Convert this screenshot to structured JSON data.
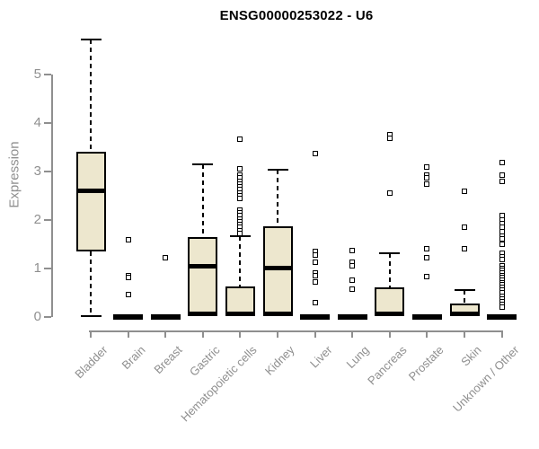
{
  "colors": {
    "axis": "#8f8f8f",
    "ink": "#000000",
    "box_fill": "#ede7ce",
    "background": "#ffffff"
  },
  "chart_data": {
    "type": "boxplot",
    "title": "ENSG00000253022 - U6",
    "xlabel": "",
    "ylabel": "Expression",
    "ylim": [
      0,
      5.8
    ],
    "yticks": [
      0,
      1,
      2,
      3,
      4,
      5
    ],
    "grid": false,
    "legend": "none",
    "categories": [
      "Bladder",
      "Brain",
      "Breast",
      "Gastric",
      "Hematopoietic cells",
      "Kidney",
      "Liver",
      "Lung",
      "Pancreas",
      "Prostate",
      "Skin",
      "Unknown / Other"
    ],
    "series": [
      {
        "name": "Bladder",
        "whisker_low": 0,
        "q1": 1.35,
        "median": 2.6,
        "q3": 3.4,
        "whisker_high": 5.72,
        "outliers": []
      },
      {
        "name": "Brain",
        "whisker_low": 0,
        "q1": 0,
        "median": 0,
        "q3": 0,
        "whisker_high": 0,
        "outliers": [
          1.58,
          0.84,
          0.81,
          0.45
        ]
      },
      {
        "name": "Breast",
        "whisker_low": 0,
        "q1": 0,
        "median": 0,
        "q3": 0,
        "whisker_high": 0,
        "outliers": [
          1.22
        ]
      },
      {
        "name": "Gastric",
        "whisker_low": 0,
        "q1": 0,
        "median": 1.03,
        "q3": 1.65,
        "whisker_high": 3.15,
        "outliers": []
      },
      {
        "name": "Hematopoietic cells",
        "whisker_low": 0,
        "q1": 0,
        "median": 0,
        "q3": 0.62,
        "whisker_high": 1.66,
        "outliers": [
          3.67,
          3.05,
          2.92,
          2.86,
          2.8,
          2.74,
          2.68,
          2.62,
          2.56,
          2.5,
          2.44,
          2.2,
          2.14,
          2.08,
          2.02,
          1.96,
          1.9,
          1.84,
          1.78,
          1.72
        ]
      },
      {
        "name": "Kidney",
        "whisker_low": 0,
        "q1": 0,
        "median": 1.0,
        "q3": 1.87,
        "whisker_high": 3.03,
        "outliers": []
      },
      {
        "name": "Liver",
        "whisker_low": 0,
        "q1": 0,
        "median": 0,
        "q3": 0,
        "whisker_high": 0,
        "outliers": [
          3.36,
          1.34,
          1.27,
          1.12,
          0.9,
          0.85,
          0.71,
          0.29
        ]
      },
      {
        "name": "Lung",
        "whisker_low": 0,
        "q1": 0,
        "median": 0,
        "q3": 0,
        "whisker_high": 0,
        "outliers": [
          1.36,
          1.12,
          1.04,
          0.75,
          0.57
        ]
      },
      {
        "name": "Pancreas",
        "whisker_low": 0,
        "q1": 0,
        "median": 0,
        "q3": 0.6,
        "whisker_high": 1.31,
        "outliers": [
          3.75,
          3.68,
          2.56
        ]
      },
      {
        "name": "Prostate",
        "whisker_low": 0,
        "q1": 0,
        "median": 0,
        "q3": 0,
        "whisker_high": 0,
        "outliers": [
          3.08,
          2.93,
          2.86,
          2.74,
          1.41,
          1.22,
          0.82
        ]
      },
      {
        "name": "Skin",
        "whisker_low": 0,
        "q1": 0,
        "median": 0,
        "q3": 0.26,
        "whisker_high": 0.54,
        "outliers": [
          2.58,
          1.84,
          1.4
        ]
      },
      {
        "name": "Unknown / Other",
        "whisker_low": 0,
        "q1": 0,
        "median": 0,
        "q3": 0,
        "whisker_high": 0,
        "outliers": [
          3.18,
          2.92,
          2.8,
          2.08,
          2.0,
          1.92,
          1.84,
          1.75,
          1.66,
          1.6,
          1.5,
          1.3,
          1.24,
          1.18,
          1.05,
          1.0,
          0.95,
          0.9,
          0.85,
          0.8,
          0.75,
          0.7,
          0.65,
          0.6,
          0.55,
          0.5,
          0.42,
          0.36,
          0.3,
          0.25,
          0.2
        ]
      }
    ]
  }
}
